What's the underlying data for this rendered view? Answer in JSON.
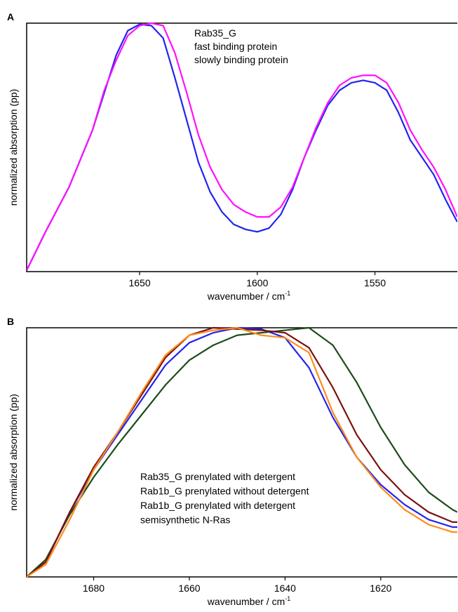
{
  "chart_data": [
    {
      "type": "line",
      "panel_label": "A",
      "ylabel": "normalized absorption (pp)",
      "xlabel": "wavenumber / cm",
      "xlabel_sup": "-1",
      "xlim": [
        1698,
        1515
      ],
      "ylim": [
        0,
        1
      ],
      "xticks": [
        1650,
        1600,
        1550
      ],
      "legend_title": "Rab35_G",
      "x": [
        1698,
        1690,
        1680,
        1670,
        1665,
        1660,
        1655,
        1650,
        1645,
        1640,
        1635,
        1630,
        1625,
        1620,
        1615,
        1610,
        1605,
        1600,
        1595,
        1590,
        1585,
        1580,
        1575,
        1570,
        1565,
        1560,
        1555,
        1550,
        1545,
        1540,
        1535,
        1530,
        1525,
        1520,
        1515
      ],
      "series": [
        {
          "name": "fast binding protein",
          "color": "#2323f0",
          "values": [
            0.005,
            0.16,
            0.34,
            0.57,
            0.72,
            0.87,
            0.97,
            0.995,
            0.99,
            0.94,
            0.78,
            0.61,
            0.44,
            0.32,
            0.24,
            0.19,
            0.17,
            0.16,
            0.175,
            0.23,
            0.33,
            0.46,
            0.57,
            0.67,
            0.73,
            0.76,
            0.77,
            0.76,
            0.73,
            0.64,
            0.53,
            0.46,
            0.39,
            0.29,
            0.2
          ]
        },
        {
          "name": "slowly binding protein",
          "color": "#ff10ff",
          "values": [
            0.005,
            0.16,
            0.34,
            0.57,
            0.73,
            0.85,
            0.95,
            0.99,
            1.0,
            0.99,
            0.88,
            0.72,
            0.55,
            0.42,
            0.33,
            0.27,
            0.24,
            0.22,
            0.22,
            0.26,
            0.34,
            0.46,
            0.58,
            0.68,
            0.75,
            0.78,
            0.79,
            0.79,
            0.76,
            0.68,
            0.57,
            0.49,
            0.42,
            0.33,
            0.22
          ]
        }
      ]
    },
    {
      "type": "line",
      "panel_label": "B",
      "ylabel": "normalized absorption (pp)",
      "xlabel": "wavenumber / cm",
      "xlabel_sup": "-1",
      "xlim": [
        1694,
        1604
      ],
      "ylim": [
        0,
        1
      ],
      "xticks": [
        1680,
        1660,
        1640,
        1620
      ],
      "x": [
        1694,
        1690,
        1685,
        1680,
        1675,
        1670,
        1665,
        1660,
        1655,
        1650,
        1645,
        1640,
        1635,
        1630,
        1625,
        1620,
        1615,
        1610,
        1605,
        1604
      ],
      "series": [
        {
          "name": "Rab35_G prenylated with detergent",
          "color": "#2323f0",
          "values": [
            0,
            0.06,
            0.26,
            0.43,
            0.57,
            0.71,
            0.85,
            0.94,
            0.98,
            1.0,
            0.995,
            0.96,
            0.84,
            0.64,
            0.48,
            0.37,
            0.29,
            0.23,
            0.2,
            0.2
          ]
        },
        {
          "name": "Rab1b_G prenylated without detergent",
          "color": "#1b4d1b",
          "values": [
            0,
            0.07,
            0.25,
            0.4,
            0.53,
            0.65,
            0.77,
            0.87,
            0.93,
            0.97,
            0.98,
            0.99,
            1.0,
            0.93,
            0.78,
            0.6,
            0.45,
            0.34,
            0.27,
            0.26
          ]
        },
        {
          "name": "Rab1b_G prenylated with detergent",
          "color": "#7a1212",
          "values": [
            0,
            0.06,
            0.26,
            0.44,
            0.58,
            0.73,
            0.88,
            0.97,
            1.0,
            0.995,
            0.99,
            0.98,
            0.92,
            0.76,
            0.57,
            0.43,
            0.33,
            0.26,
            0.22,
            0.22
          ]
        },
        {
          "name": "semisynthetic N-Ras",
          "color": "#ff8c1a",
          "values": [
            0,
            0.05,
            0.23,
            0.43,
            0.58,
            0.74,
            0.89,
            0.97,
            0.99,
            1.0,
            0.97,
            0.96,
            0.9,
            0.66,
            0.48,
            0.36,
            0.27,
            0.21,
            0.18,
            0.18
          ]
        }
      ]
    }
  ]
}
